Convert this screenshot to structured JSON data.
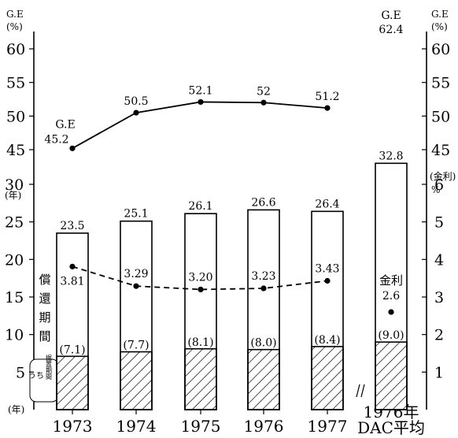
{
  "chart_data": [
    {
      "type": "line",
      "title": "",
      "ylabel_left": "G.E\n(%)",
      "ylabel_right": "G.E\n(%)",
      "series_label": "G.E",
      "ylim": [
        45,
        60
      ],
      "yticks": [
        45,
        50,
        55,
        60
      ],
      "x": [
        "1973",
        "1974",
        "1975",
        "1976",
        "1977"
      ],
      "values": [
        45.2,
        50.5,
        52.1,
        52.0,
        51.2
      ],
      "dac_label": "G.E",
      "dac_value": 62.4
    },
    {
      "type": "bar",
      "ylabel_left": "(年)",
      "ylabel_right": "(金利)\n%",
      "xlabel_unit": "(年)",
      "ylim_left": [
        0,
        30
      ],
      "yticks_left": [
        5,
        10,
        15,
        20,
        25,
        30
      ],
      "ylim_right": [
        0,
        6
      ],
      "yticks_right": [
        1,
        2,
        3,
        4,
        5,
        6
      ],
      "categories": [
        "1973",
        "1974",
        "1975",
        "1976",
        "1977"
      ],
      "dac_category": "1976年\nDAC平均",
      "repayment_period": [
        23.5,
        25.1,
        26.1,
        26.6,
        26.4
      ],
      "repayment_period_dac": 32.8,
      "grace_period": [
        7.1,
        7.7,
        8.1,
        8.0,
        8.4
      ],
      "grace_period_labels": [
        "(7.1)",
        "(7.7)",
        "(8.1)",
        "(8.0)",
        "(8.4)"
      ],
      "grace_period_dac": 9.0,
      "grace_period_dac_label": "(9.0)",
      "interest_rate": [
        3.81,
        3.29,
        3.2,
        3.23,
        3.43
      ],
      "interest_rate_labels": [
        "3.81",
        "3.29",
        "3.20",
        "3.23",
        "3.43"
      ],
      "interest_rate_dac": 2.6,
      "interest_rate_dac_label": "2.6",
      "label_interest": "金利",
      "label_period": "償還期間",
      "label_grace": "うち据置期間",
      "label_uchi": "うち",
      "label_grace_short": "据置期間"
    }
  ]
}
